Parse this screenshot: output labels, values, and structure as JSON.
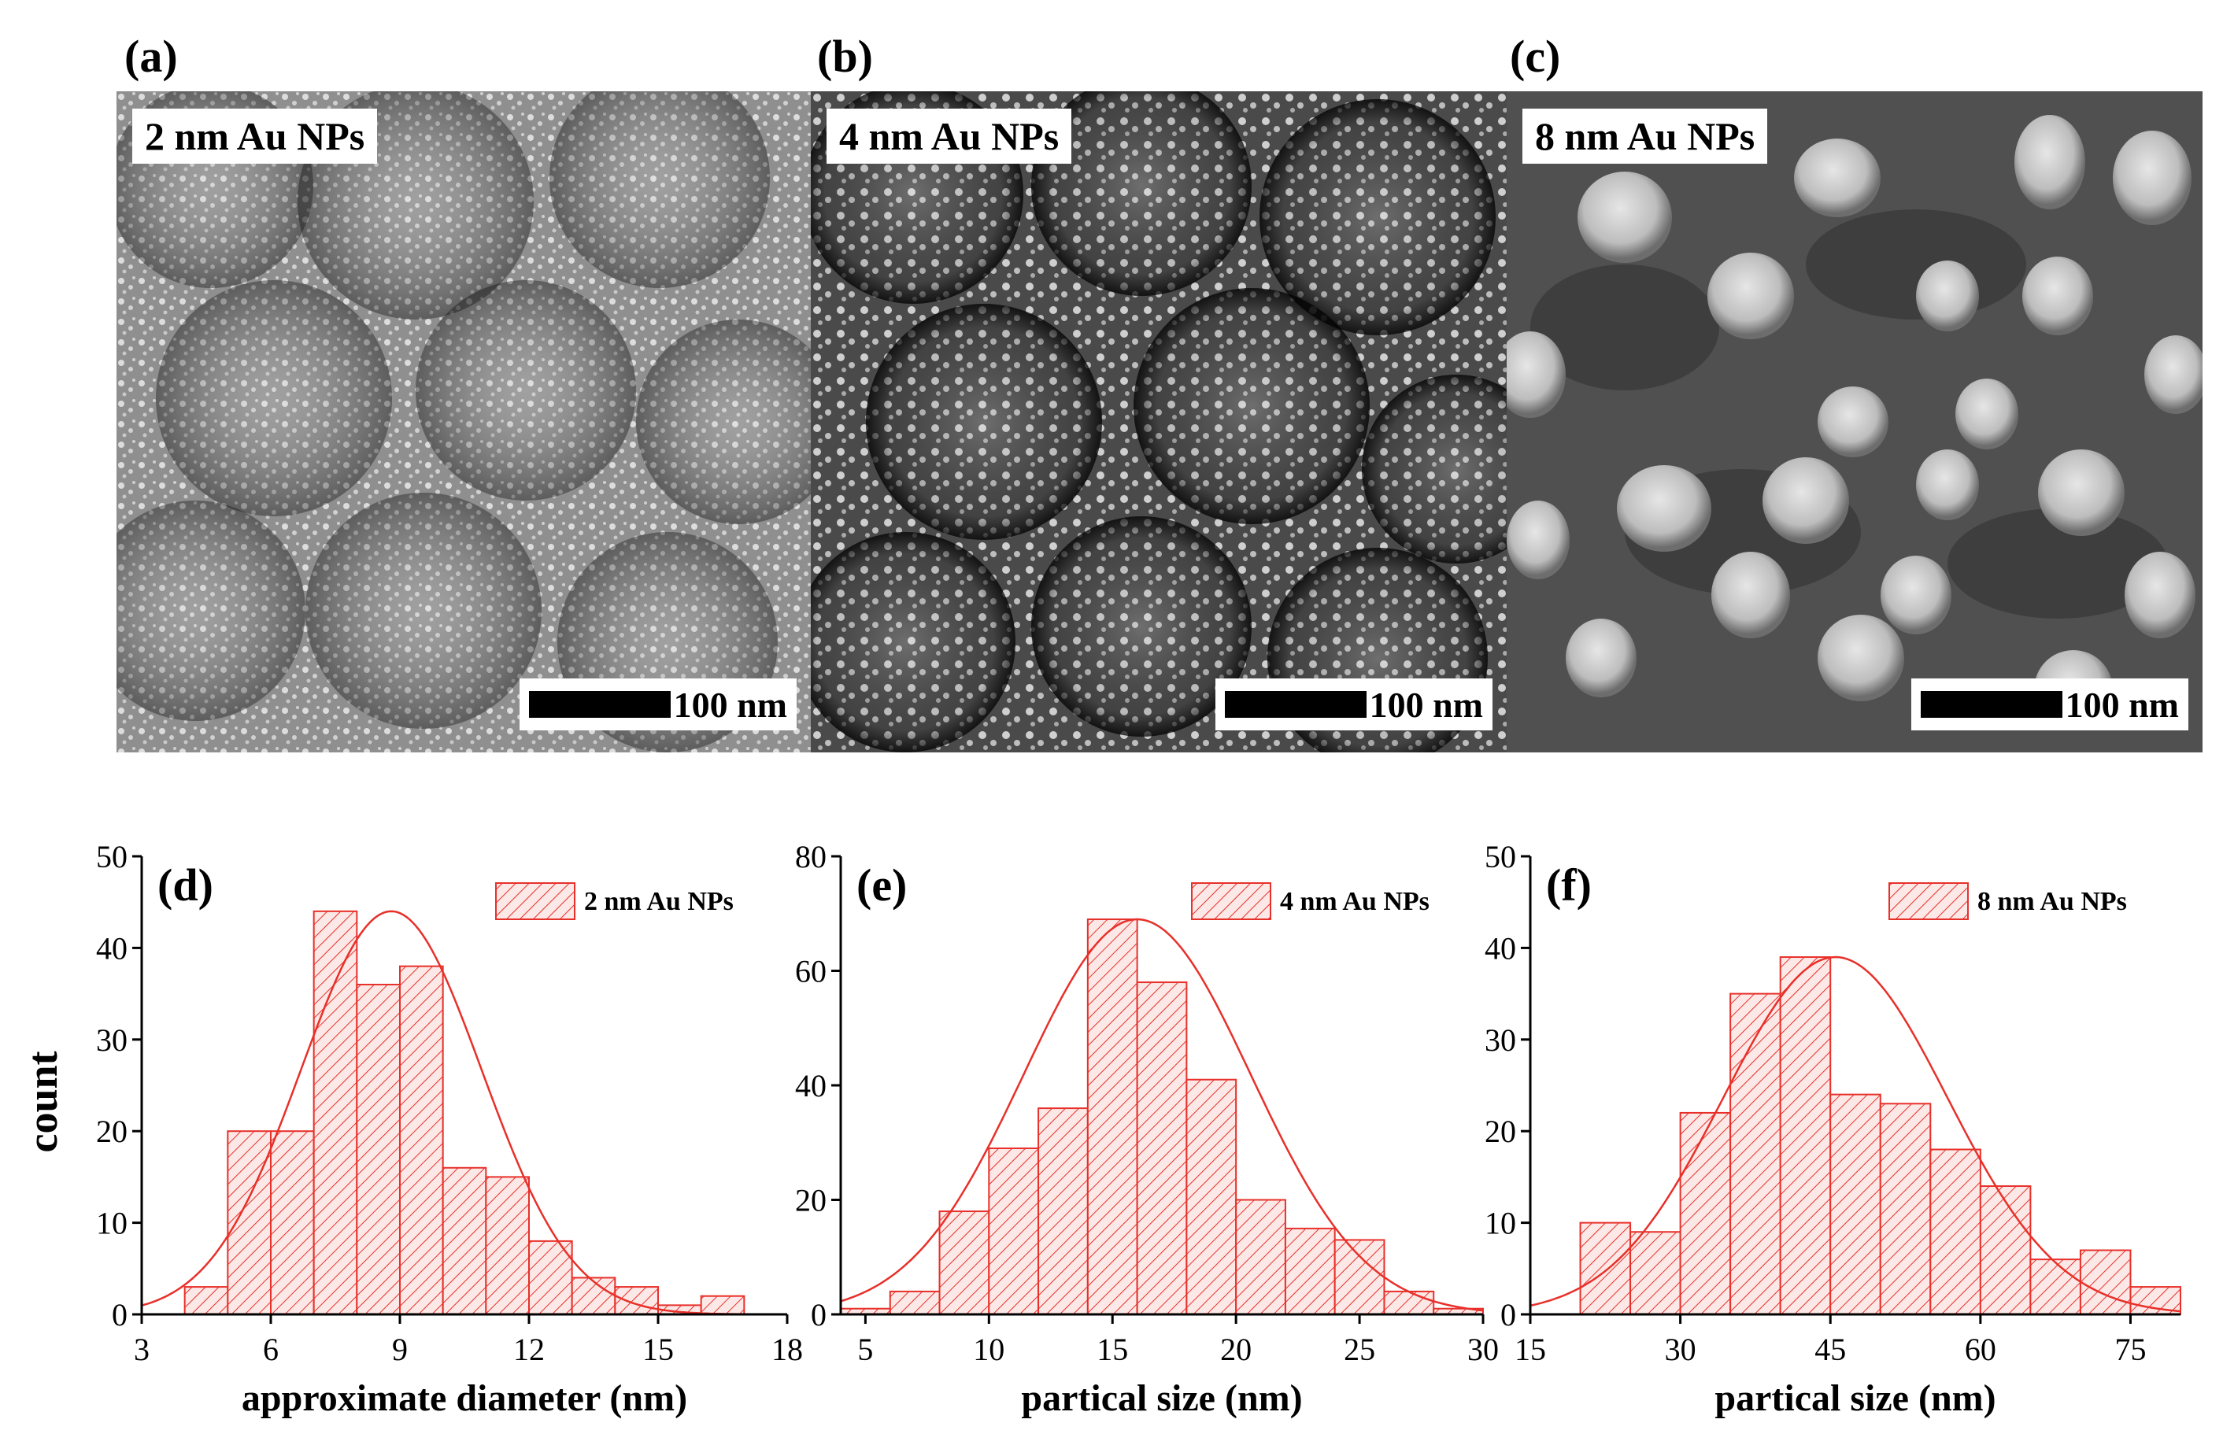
{
  "sem_panels": [
    {
      "letter": "(a)",
      "label": "2 nm Au NPs",
      "scale": "100 nm"
    },
    {
      "letter": "(b)",
      "label": "4 nm Au NPs",
      "scale": "100 nm"
    },
    {
      "letter": "(c)",
      "label": "8 nm Au NPs",
      "scale": "100 nm"
    }
  ],
  "shared_ylabel": "count",
  "chart_data": [
    {
      "type": "bar",
      "panel": "(d)",
      "legend": "2 nm Au NPs",
      "xlabel": "approximate diameter (nm)",
      "ylabel": "count",
      "xlim": [
        3,
        18
      ],
      "ylim": [
        0,
        50
      ],
      "xticks": [
        "3",
        "6",
        "9",
        "12",
        "15",
        "18"
      ],
      "yticks": [
        "0",
        "10",
        "20",
        "30",
        "40",
        "50"
      ],
      "bin_start": 4,
      "bin_width": 1,
      "values": [
        3,
        20,
        20,
        44,
        36,
        38,
        16,
        15,
        8,
        4,
        3,
        1,
        2
      ],
      "fit": {
        "mean": 8.8,
        "sigma": 2.1,
        "peak": 44
      }
    },
    {
      "type": "bar",
      "panel": "(e)",
      "legend": "4 nm Au NPs",
      "xlabel": "partical size  (nm)",
      "ylabel": "count",
      "xlim": [
        4,
        30
      ],
      "ylim": [
        0,
        80
      ],
      "xticks": [
        "5",
        "10",
        "15",
        "20",
        "25",
        "30"
      ],
      "yticks": [
        "0",
        "20",
        "40",
        "60",
        "80"
      ],
      "bin_start": 4,
      "bin_width": 2,
      "values": [
        1,
        4,
        18,
        29,
        36,
        69,
        58,
        41,
        20,
        15,
        13,
        4,
        1
      ],
      "fit": {
        "mean": 16,
        "sigma": 4.6,
        "peak": 69
      }
    },
    {
      "type": "bar",
      "panel": "(f)",
      "legend": "8 nm Au NPs",
      "xlabel": "partical size  (nm)",
      "ylabel": "count",
      "xlim": [
        15,
        80
      ],
      "ylim": [
        0,
        50
      ],
      "xticks": [
        "15",
        "30",
        "45",
        "60",
        "75"
      ],
      "yticks": [
        "0",
        "10",
        "20",
        "30",
        "40",
        "50"
      ],
      "bin_start": 20,
      "bin_width": 5,
      "values": [
        10,
        9,
        22,
        35,
        39,
        24,
        23,
        18,
        14,
        6,
        7,
        3
      ],
      "fit": {
        "mean": 45.5,
        "sigma": 11.2,
        "peak": 39
      }
    }
  ],
  "colors": {
    "hist": "#e8302a",
    "axis": "#000000"
  }
}
